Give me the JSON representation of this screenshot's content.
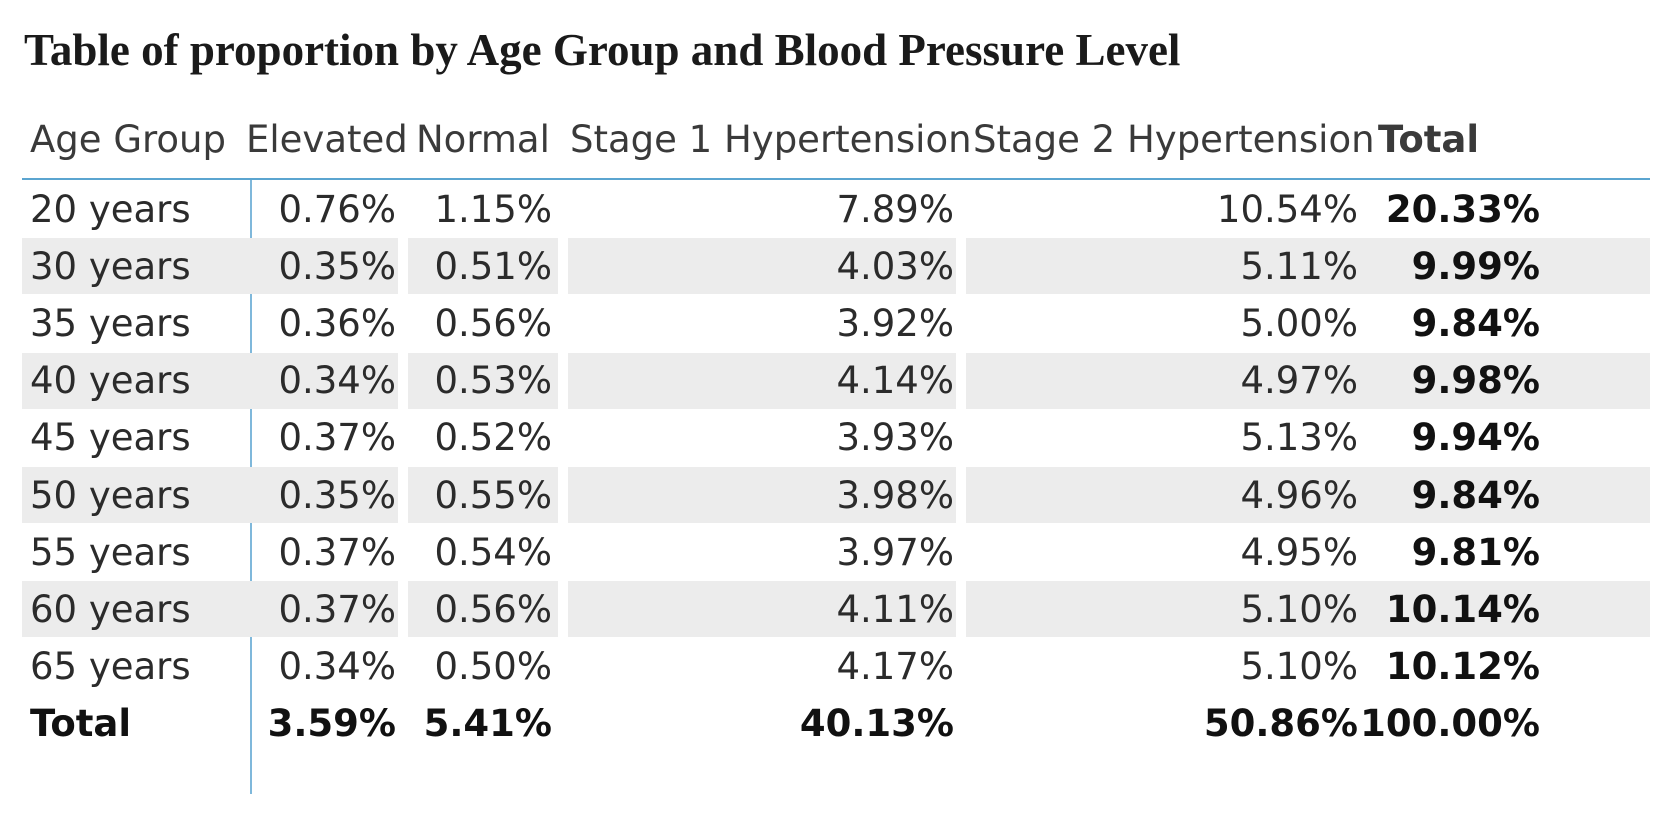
{
  "title": "Table of proportion by Age Group and Blood Pressure Level",
  "chart_data": {
    "type": "table",
    "title": "Table of proportion by Age Group and Blood Pressure Level",
    "columns": [
      "Age Group",
      "Elevated",
      "Normal",
      "Stage 1 Hypertension",
      "Stage 2 Hypertension",
      "Total"
    ],
    "rows": [
      {
        "label": "20 years",
        "values": [
          "0.76%",
          "1.15%",
          "7.89%",
          "10.54%",
          "20.33%"
        ]
      },
      {
        "label": "30 years",
        "values": [
          "0.35%",
          "0.51%",
          "4.03%",
          "5.11%",
          "9.99%"
        ]
      },
      {
        "label": "35 years",
        "values": [
          "0.36%",
          "0.56%",
          "3.92%",
          "5.00%",
          "9.84%"
        ]
      },
      {
        "label": "40 years",
        "values": [
          "0.34%",
          "0.53%",
          "4.14%",
          "4.97%",
          "9.98%"
        ]
      },
      {
        "label": "45 years",
        "values": [
          "0.37%",
          "0.52%",
          "3.93%",
          "5.13%",
          "9.94%"
        ]
      },
      {
        "label": "50 years",
        "values": [
          "0.35%",
          "0.55%",
          "3.98%",
          "4.96%",
          "9.84%"
        ]
      },
      {
        "label": "55 years",
        "values": [
          "0.37%",
          "0.54%",
          "3.97%",
          "4.95%",
          "9.81%"
        ]
      },
      {
        "label": "60 years",
        "values": [
          "0.37%",
          "0.56%",
          "4.11%",
          "5.10%",
          "10.14%"
        ]
      },
      {
        "label": "65 years",
        "values": [
          "0.34%",
          "0.50%",
          "4.17%",
          "5.10%",
          "10.12%"
        ]
      }
    ],
    "total_row": {
      "label": "Total",
      "values": [
        "3.59%",
        "5.41%",
        "40.13%",
        "50.86%",
        "100.00%"
      ]
    }
  },
  "colors": {
    "header_rule": "#5ba5d0",
    "row_band": "#ececec",
    "divider": "#7fb8db"
  }
}
